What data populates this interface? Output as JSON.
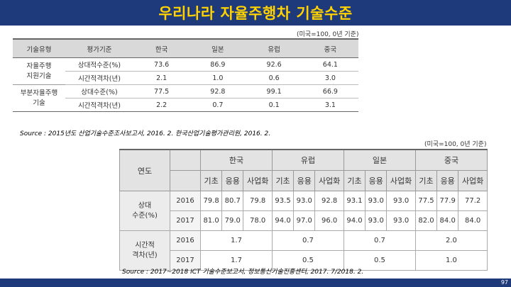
{
  "title": "우리나라 자율주행차 기술수준",
  "table1": {
    "unit": "(미국=100, 0년 기준)",
    "headers": [
      "기술유형",
      "평가기준",
      "한국",
      "일본",
      "유럽",
      "중국"
    ],
    "groups": [
      {
        "type_line1": "자율주행",
        "type_line2": "지원기술",
        "rows": [
          {
            "criterion": "상대적수준(%)",
            "values": [
              "73.6",
              "86.9",
              "92.6",
              "64.1"
            ]
          },
          {
            "criterion": "시간적격차(년)",
            "values": [
              "2.1",
              "1.0",
              "0.6",
              "3.0"
            ]
          }
        ]
      },
      {
        "type_line1": "부분자율주행",
        "type_line2": "기술",
        "rows": [
          {
            "criterion": "상대수준(%)",
            "values": [
              "77.5",
              "92.8",
              "99.1",
              "66.9"
            ]
          },
          {
            "criterion": "시간적격차(년)",
            "values": [
              "2.2",
              "0.7",
              "0.1",
              "3.1"
            ]
          }
        ]
      }
    ],
    "source": "Source : 2015년도 산업기술수준조사보고서, 2016. 2. 한국산업기술평가관리원, 2016. 2."
  },
  "table2": {
    "unit": "(미국=100, 0년 기준)",
    "year_header": "연도",
    "countries": [
      "한국",
      "유럽",
      "일본",
      "중국"
    ],
    "sub_headers": [
      "기초",
      "응용",
      "사업화"
    ],
    "relative": {
      "label_line1": "상대",
      "label_line2": "수준(%)",
      "rows": [
        {
          "year": "2016",
          "values": [
            "79.8",
            "80.7",
            "79.8",
            "93.5",
            "93.0",
            "92.8",
            "93.1",
            "93.0",
            "93.0",
            "77.5",
            "77.9",
            "77.2"
          ]
        },
        {
          "year": "2017",
          "values": [
            "81.0",
            "79.0",
            "78.0",
            "94.0",
            "97.0",
            "96.0",
            "94.0",
            "93.0",
            "93.0",
            "82.0",
            "84.0",
            "84.0"
          ]
        }
      ]
    },
    "gap": {
      "label_line1": "시간적",
      "label_line2": "격차(년)",
      "rows": [
        {
          "year": "2016",
          "values": [
            "1.7",
            "0.7",
            "0.7",
            "2.0"
          ]
        },
        {
          "year": "2017",
          "values": [
            "1.7",
            "0.5",
            "0.5",
            "1.0"
          ]
        }
      ]
    },
    "source": "Source : 2017~2018 ICT 기술수준보고서, 정보통신기술진흥센터, 2017. 7/2018. 2."
  },
  "page_number": "97",
  "colors": {
    "title_bar": "#1f3a7a",
    "title_text": "#ffd200"
  }
}
